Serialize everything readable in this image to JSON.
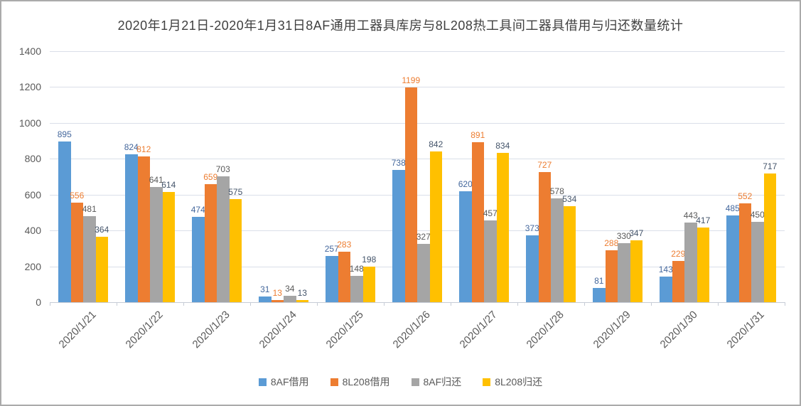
{
  "chart_data": {
    "type": "bar",
    "title": "2020年1月21日-2020年1月31日8AF通用工器具库房与8L208热工具间工器具借用与归还数量统计",
    "categories": [
      "2020/1/21",
      "2020/1/22",
      "2020/1/23",
      "2020/1/24",
      "2020/1/25",
      "2020/1/26",
      "2020/1/27",
      "2020/1/28",
      "2020/1/29",
      "2020/1/30",
      "2020/1/31"
    ],
    "series": [
      {
        "name": "8AF借用",
        "color": "#5B9BD5",
        "label_color": "#44679C",
        "values": [
          895,
          824,
          474,
          31,
          257,
          738,
          620,
          373,
          81,
          143,
          485
        ]
      },
      {
        "name": "8L208借用",
        "color": "#ED7D31",
        "label_color": "#ED7D31",
        "values": [
          556,
          812,
          659,
          13,
          283,
          1199,
          891,
          727,
          288,
          229,
          552
        ]
      },
      {
        "name": "8AF归还",
        "color": "#A5A5A5",
        "label_color": "#595959",
        "values": [
          481,
          641,
          703,
          34,
          148,
          327,
          457,
          578,
          330,
          443,
          450
        ]
      },
      {
        "name": "8L208归还",
        "color": "#FFC000",
        "label_color": "#44546A",
        "values": [
          364,
          614,
          575,
          13,
          198,
          842,
          834,
          534,
          347,
          417,
          717
        ]
      }
    ],
    "xlabel": "",
    "ylabel": "",
    "ylim": [
      0,
      1400
    ],
    "y_step": 200,
    "y_ticks": [
      "0",
      "200",
      "400",
      "600",
      "800",
      "1000",
      "1200",
      "1400"
    ],
    "grid": true,
    "data_labels": true,
    "legend_position": "bottom",
    "colors": {
      "grid": "#dadfe9",
      "axis": "#c6ccd6",
      "tick_text": "#595959",
      "title_text": "#404040",
      "border": "#ababab"
    }
  }
}
